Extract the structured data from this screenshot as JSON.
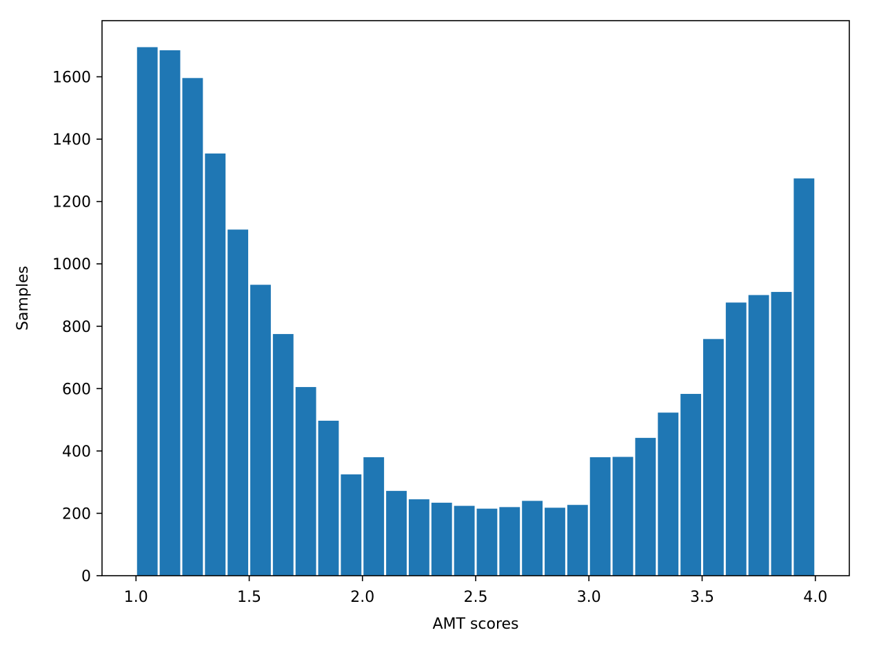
{
  "chart_data": {
    "type": "bar",
    "subtype": "histogram",
    "title": "",
    "xlabel": "AMT scores",
    "ylabel": "Samples",
    "xlim": [
      0.85,
      4.15
    ],
    "ylim": [
      0,
      1780
    ],
    "bar_color": "#1f77b4",
    "grid": false,
    "legend": "none",
    "x_ticks": [
      1.0,
      1.5,
      2.0,
      2.5,
      3.0,
      3.5,
      4.0
    ],
    "x_tick_labels": [
      "1.0",
      "1.5",
      "2.0",
      "2.5",
      "3.0",
      "3.5",
      "4.0"
    ],
    "y_ticks": [
      0,
      200,
      400,
      600,
      800,
      1000,
      1200,
      1400,
      1600
    ],
    "y_tick_labels": [
      "0",
      "200",
      "400",
      "600",
      "800",
      "1000",
      "1200",
      "1400",
      "1600"
    ],
    "bins": {
      "start": 1.0,
      "end": 4.0,
      "count": 30,
      "width": 0.1
    },
    "values": [
      1695,
      1685,
      1596,
      1354,
      1110,
      933,
      775,
      605,
      497,
      325,
      380,
      272,
      245,
      234,
      224,
      215,
      220,
      240,
      218,
      227,
      380,
      381,
      442,
      523,
      583,
      759,
      876,
      900,
      910,
      1274
    ]
  }
}
